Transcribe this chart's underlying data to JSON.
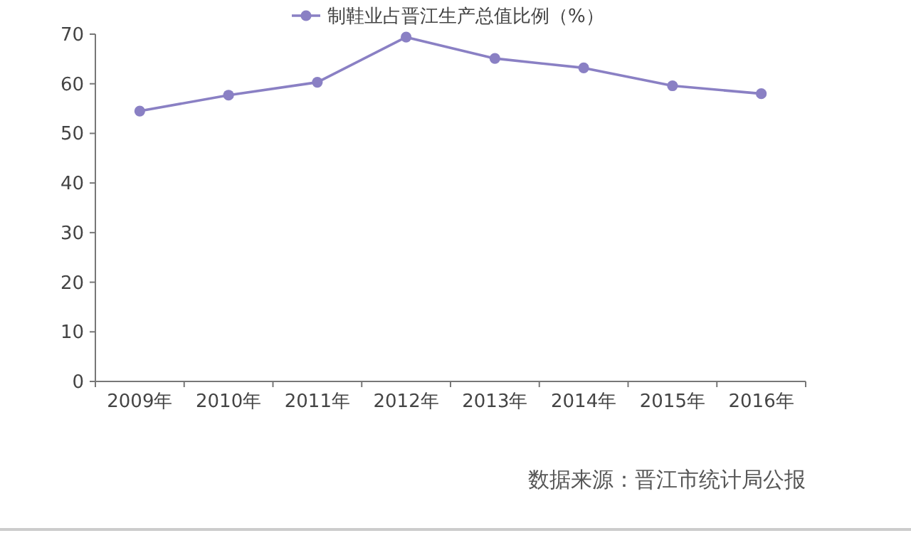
{
  "chart_data": {
    "type": "line",
    "categories": [
      "2009年",
      "2010年",
      "2011年",
      "2012年",
      "2013年",
      "2014年",
      "2015年",
      "2016年"
    ],
    "series": [
      {
        "name": "制鞋业占晋江生产总值比例（%）",
        "color": "#8a80c4",
        "values": [
          54.5,
          57.7,
          60.3,
          69.4,
          65.1,
          63.2,
          59.6,
          58.0
        ]
      }
    ],
    "ylim": [
      0,
      70
    ],
    "yticks": [
      0,
      10,
      20,
      30,
      40,
      50,
      60,
      70
    ],
    "marker": "circle",
    "legend": "top",
    "grid": false,
    "annotations": [
      "数据来源：晋江市统计局公报"
    ]
  }
}
